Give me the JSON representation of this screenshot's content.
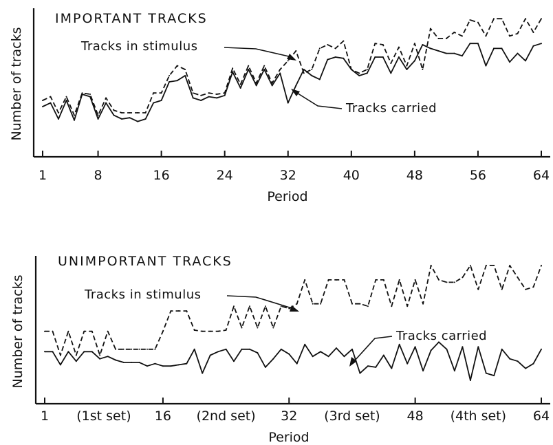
{
  "chart_data": [
    {
      "type": "line",
      "title": "IMPORTANT TRACKS",
      "xlabel": "Period",
      "ylabel": "Number of tracks",
      "xlim": [
        1,
        64
      ],
      "ylim": [
        0,
        100
      ],
      "xticks": [
        1,
        8,
        16,
        24,
        32,
        40,
        48,
        56,
        64
      ],
      "xtick_labels": [
        "1",
        "8",
        "16",
        "24",
        "32",
        "40",
        "48",
        "56",
        "64"
      ],
      "annotations": [
        "Tracks in stimulus",
        "Tracks carried"
      ],
      "series": [
        {
          "name": "Tracks in stimulus",
          "style": "dashed",
          "x": [
            1,
            2,
            3,
            4,
            5,
            6,
            7,
            8,
            9,
            10,
            11,
            12,
            13,
            14,
            15,
            16,
            17,
            18,
            19,
            20,
            21,
            22,
            23,
            24,
            25,
            26,
            27,
            28,
            29,
            30,
            31,
            32,
            33,
            34,
            35,
            36,
            37,
            38,
            39,
            40,
            41,
            42,
            43,
            44,
            45,
            46,
            47,
            48,
            49,
            50,
            51,
            52,
            53,
            54,
            55,
            56,
            57,
            58,
            59,
            60,
            61,
            62,
            63,
            64
          ],
          "values": [
            30,
            33,
            20,
            33,
            18,
            36,
            35,
            18,
            32,
            22,
            20,
            20,
            20,
            20,
            36,
            36,
            50,
            58,
            55,
            36,
            34,
            36,
            35,
            36,
            56,
            43,
            58,
            44,
            58,
            44,
            55,
            62,
            70,
            52,
            55,
            72,
            75,
            72,
            78,
            55,
            52,
            55,
            76,
            75,
            60,
            73,
            58,
            76,
            55,
            88,
            80,
            80,
            85,
            82,
            95,
            93,
            82,
            96,
            96,
            82,
            84,
            96,
            85,
            96
          ]
        },
        {
          "name": "Tracks carried",
          "style": "solid",
          "x": [
            1,
            2,
            3,
            4,
            5,
            6,
            7,
            8,
            9,
            10,
            11,
            12,
            13,
            14,
            15,
            16,
            17,
            18,
            19,
            20,
            21,
            22,
            23,
            24,
            25,
            26,
            27,
            28,
            29,
            30,
            31,
            32,
            33,
            34,
            35,
            36,
            37,
            38,
            39,
            40,
            41,
            42,
            43,
            44,
            45,
            46,
            47,
            48,
            49,
            50,
            51,
            52,
            53,
            54,
            55,
            56,
            57,
            58,
            59,
            60,
            61,
            62,
            63,
            64
          ],
          "values": [
            25,
            28,
            15,
            30,
            14,
            35,
            33,
            15,
            28,
            18,
            15,
            16,
            13,
            15,
            28,
            30,
            45,
            46,
            50,
            32,
            30,
            33,
            32,
            34,
            53,
            40,
            55,
            42,
            55,
            42,
            52,
            28,
            42,
            55,
            50,
            47,
            63,
            65,
            64,
            55,
            50,
            52,
            65,
            65,
            52,
            65,
            55,
            62,
            75,
            72,
            70,
            68,
            68,
            66,
            76,
            76,
            58,
            72,
            72,
            61,
            68,
            62,
            74,
            76
          ]
        }
      ]
    },
    {
      "type": "line",
      "title": "UNIMPORTANT TRACKS",
      "xlabel": "Period",
      "ylabel": "Number of tracks",
      "xlim": [
        1,
        64
      ],
      "ylim": [
        0,
        100
      ],
      "xticks": [
        1,
        16,
        32,
        48,
        64
      ],
      "xtick_labels": [
        "1",
        "16",
        "32",
        "48",
        "64"
      ],
      "set_labels": [
        "(1st set)",
        "(2nd set)",
        "(3rd set)",
        "(4th set)"
      ],
      "annotations": [
        "Tracks in stimulus",
        "Tracks carried"
      ],
      "series": [
        {
          "name": "Tracks in stimulus",
          "style": "dashed",
          "x": [
            1,
            2,
            3,
            4,
            5,
            6,
            7,
            8,
            9,
            10,
            11,
            12,
            13,
            14,
            15,
            16,
            17,
            18,
            19,
            20,
            21,
            22,
            23,
            24,
            25,
            26,
            27,
            28,
            29,
            30,
            31,
            32,
            33,
            34,
            35,
            36,
            37,
            38,
            39,
            40,
            41,
            42,
            43,
            44,
            45,
            46,
            47,
            48,
            49,
            50,
            51,
            52,
            53,
            54,
            55,
            56,
            57,
            58,
            59,
            60,
            61,
            62,
            63,
            64
          ],
          "values": [
            45,
            45,
            25,
            45,
            25,
            45,
            45,
            25,
            45,
            30,
            30,
            30,
            30,
            30,
            30,
            45,
            62,
            62,
            62,
            46,
            45,
            45,
            45,
            46,
            66,
            48,
            66,
            48,
            66,
            48,
            66,
            64,
            68,
            88,
            68,
            68,
            88,
            88,
            88,
            68,
            68,
            66,
            88,
            88,
            66,
            88,
            66,
            88,
            68,
            100,
            88,
            86,
            86,
            90,
            100,
            80,
            100,
            100,
            80,
            100,
            90,
            80,
            82,
            100
          ]
        },
        {
          "name": "Tracks carried",
          "style": "solid",
          "x": [
            1,
            2,
            3,
            4,
            5,
            6,
            7,
            8,
            9,
            10,
            11,
            12,
            13,
            14,
            15,
            16,
            17,
            18,
            19,
            20,
            21,
            22,
            23,
            24,
            25,
            26,
            27,
            28,
            29,
            30,
            31,
            32,
            33,
            34,
            35,
            36,
            37,
            38,
            39,
            40,
            41,
            42,
            43,
            44,
            45,
            46,
            47,
            48,
            49,
            50,
            51,
            52,
            53,
            54,
            55,
            56,
            57,
            58,
            59,
            60,
            61,
            62,
            63,
            64
          ],
          "values": [
            28,
            28,
            17,
            28,
            20,
            28,
            28,
            22,
            24,
            21,
            19,
            19,
            19,
            16,
            18,
            16,
            16,
            17,
            18,
            30,
            10,
            25,
            28,
            30,
            20,
            30,
            30,
            27,
            15,
            22,
            30,
            26,
            18,
            34,
            24,
            28,
            24,
            31,
            24,
            30,
            10,
            16,
            15,
            25,
            14,
            34,
            18,
            32,
            12,
            29,
            36,
            30,
            12,
            32,
            4,
            32,
            10,
            8,
            30,
            22,
            20,
            14,
            18,
            30
          ]
        }
      ]
    }
  ]
}
